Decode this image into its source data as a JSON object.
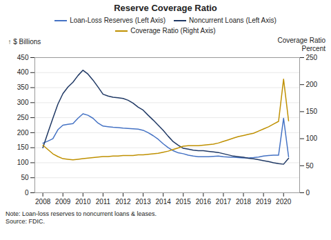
{
  "chart_data": {
    "type": "line",
    "title": "Reserve Coverage Ratio",
    "ylabel": "$ Billions",
    "y2label": "Coverage Ratio\nPercent",
    "annotations": [
      "Note: Loan-loss reserves to noncurrent loans & leases.",
      "Source: FDIC."
    ],
    "x": [
      2008,
      2008.25,
      2008.5,
      2008.75,
      2009,
      2009.25,
      2009.5,
      2009.75,
      2010,
      2010.25,
      2010.5,
      2010.75,
      2011,
      2011.25,
      2011.5,
      2011.75,
      2012,
      2012.25,
      2012.5,
      2012.75,
      2013,
      2013.25,
      2013.5,
      2013.75,
      2014,
      2014.25,
      2014.5,
      2014.75,
      2015,
      2015.25,
      2015.5,
      2015.75,
      2016,
      2016.25,
      2016.5,
      2016.75,
      2017,
      2017.25,
      2017.5,
      2017.75,
      2018,
      2018.25,
      2018.5,
      2018.75,
      2019,
      2019.25,
      2019.5,
      2019.75,
      2020,
      2020.25
    ],
    "series": [
      {
        "name": "Loan-Loss Reserves (Left Axis)",
        "color": "#4472C4",
        "values": [
          165,
          172,
          180,
          210,
          225,
          228,
          230,
          248,
          263,
          258,
          248,
          232,
          222,
          220,
          218,
          217,
          215,
          214,
          213,
          212,
          208,
          200,
          190,
          178,
          163,
          150,
          140,
          133,
          130,
          125,
          122,
          120,
          120,
          120,
          121,
          122,
          120,
          119,
          118,
          117,
          116,
          116,
          117,
          119,
          122,
          124,
          125,
          125,
          248,
          120
        ]
      },
      {
        "name": "Noncurrent Loans (Left Axis)",
        "color": "#1F3864",
        "values": [
          150,
          200,
          248,
          295,
          330,
          352,
          368,
          390,
          408,
          395,
          375,
          352,
          328,
          322,
          318,
          316,
          314,
          308,
          298,
          285,
          275,
          258,
          242,
          225,
          208,
          188,
          170,
          158,
          148,
          145,
          142,
          140,
          140,
          138,
          136,
          134,
          130,
          126,
          122,
          120,
          118,
          115,
          113,
          110,
          107,
          104,
          100,
          97,
          95,
          115
        ]
      },
      {
        "name": "Coverage Ratio (Right Axis)",
        "color": "#BF9000",
        "axis": "y2",
        "values": [
          88,
          80,
          72,
          67,
          63,
          62,
          61,
          62,
          63,
          64,
          65,
          66,
          67,
          67,
          68,
          68,
          69,
          69,
          69,
          70,
          70,
          71,
          72,
          73,
          75,
          77,
          80,
          83,
          86,
          87,
          87,
          87,
          88,
          89,
          90,
          92,
          95,
          98,
          101,
          104,
          106,
          108,
          110,
          114,
          118,
          122,
          127,
          132,
          210,
          133
        ]
      }
    ],
    "xlim": [
      2007.6,
      2020.8
    ],
    "xticks": [
      2008,
      2009,
      2010,
      2011,
      2012,
      2013,
      2014,
      2015,
      2016,
      2017,
      2018,
      2019,
      2020
    ],
    "ylim": [
      0,
      450
    ],
    "yticks": [
      0,
      50,
      100,
      150,
      200,
      250,
      300,
      350,
      400,
      450
    ],
    "y2lim": [
      0,
      250
    ],
    "y2ticks": [
      0,
      50,
      100,
      150,
      200,
      250
    ],
    "grid": true,
    "legend": "top"
  }
}
